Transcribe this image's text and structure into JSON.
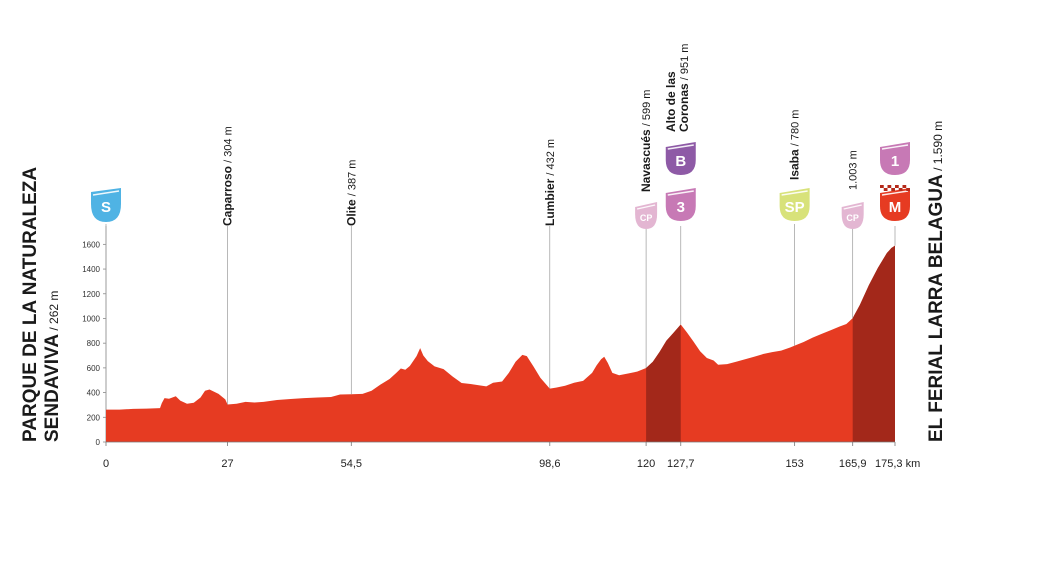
{
  "chart_data": {
    "type": "area",
    "title": "",
    "xlabel": "",
    "ylabel": "",
    "xlim": [
      0,
      175.3
    ],
    "ylim": [
      0,
      1700
    ],
    "y_ticks": [
      0,
      200,
      400,
      600,
      800,
      1000,
      1200,
      1400,
      1600
    ],
    "x_ticks": [
      {
        "km": 0,
        "label": "0"
      },
      {
        "km": 27,
        "label": "27"
      },
      {
        "km": 54.5,
        "label": "54,5"
      },
      {
        "km": 98.6,
        "label": "98,6"
      },
      {
        "km": 120,
        "label": "120"
      },
      {
        "km": 127.7,
        "label": "127,7"
      },
      {
        "km": 153,
        "label": "153"
      },
      {
        "km": 165.9,
        "label": "165,9"
      },
      {
        "km": 175.3,
        "label": "175,3 km"
      }
    ],
    "profile": [
      [
        0,
        262
      ],
      [
        3,
        262
      ],
      [
        6,
        268
      ],
      [
        9,
        270
      ],
      [
        12,
        274
      ],
      [
        12.4,
        315
      ],
      [
        13,
        355
      ],
      [
        14,
        350
      ],
      [
        15.5,
        370
      ],
      [
        16.5,
        335
      ],
      [
        18,
        310
      ],
      [
        19.5,
        318
      ],
      [
        21,
        360
      ],
      [
        22,
        415
      ],
      [
        23,
        425
      ],
      [
        25,
        390
      ],
      [
        26.5,
        345
      ],
      [
        27,
        304
      ],
      [
        29,
        310
      ],
      [
        31,
        325
      ],
      [
        33,
        320
      ],
      [
        35,
        325
      ],
      [
        38,
        340
      ],
      [
        41,
        348
      ],
      [
        44,
        355
      ],
      [
        47,
        360
      ],
      [
        50,
        364
      ],
      [
        52,
        385
      ],
      [
        54.5,
        387
      ],
      [
        57,
        390
      ],
      [
        59,
        415
      ],
      [
        61,
        465
      ],
      [
        63,
        510
      ],
      [
        64.5,
        560
      ],
      [
        65.5,
        595
      ],
      [
        66.5,
        585
      ],
      [
        67.5,
        615
      ],
      [
        69,
        695
      ],
      [
        69.8,
        760
      ],
      [
        70.5,
        700
      ],
      [
        71.5,
        655
      ],
      [
        73,
        612
      ],
      [
        75,
        590
      ],
      [
        77,
        530
      ],
      [
        79,
        478
      ],
      [
        81,
        470
      ],
      [
        83,
        458
      ],
      [
        84.5,
        450
      ],
      [
        86,
        480
      ],
      [
        88,
        490
      ],
      [
        89.5,
        560
      ],
      [
        91,
        650
      ],
      [
        92.5,
        705
      ],
      [
        93.5,
        695
      ],
      [
        95,
        610
      ],
      [
        96.5,
        520
      ],
      [
        98.6,
        432
      ],
      [
        100,
        440
      ],
      [
        102,
        455
      ],
      [
        104,
        480
      ],
      [
        106,
        495
      ],
      [
        108,
        560
      ],
      [
        109,
        620
      ],
      [
        110,
        670
      ],
      [
        110.7,
        690
      ],
      [
        111.5,
        640
      ],
      [
        112.5,
        560
      ],
      [
        114,
        540
      ],
      [
        116,
        555
      ],
      [
        118,
        570
      ],
      [
        120,
        599
      ],
      [
        121.5,
        650
      ],
      [
        123,
        730
      ],
      [
        124.5,
        820
      ],
      [
        126,
        880
      ],
      [
        127.7,
        951
      ],
      [
        129,
        890
      ],
      [
        130.5,
        815
      ],
      [
        132,
        735
      ],
      [
        133.5,
        680
      ],
      [
        135,
        660
      ],
      [
        136,
        625
      ],
      [
        138,
        630
      ],
      [
        140,
        650
      ],
      [
        142,
        670
      ],
      [
        144,
        690
      ],
      [
        146,
        712
      ],
      [
        148,
        728
      ],
      [
        150,
        740
      ],
      [
        152,
        765
      ],
      [
        153,
        780
      ],
      [
        155,
        810
      ],
      [
        157,
        845
      ],
      [
        159,
        875
      ],
      [
        161,
        905
      ],
      [
        163,
        935
      ],
      [
        164.5,
        955
      ],
      [
        165.9,
        1003
      ],
      [
        167.5,
        1110
      ],
      [
        169.5,
        1270
      ],
      [
        171.5,
        1410
      ],
      [
        173.5,
        1530
      ],
      [
        174.5,
        1570
      ],
      [
        175.3,
        1590
      ]
    ],
    "climb_segments": [
      [
        120,
        127.7
      ],
      [
        165.9,
        175.3
      ]
    ],
    "start": {
      "km": 0,
      "name_line1": "PARQUE DE LA NATURALEZA",
      "name_line2": "SENDAVIVA",
      "altitude": " / 262 m"
    },
    "finish": {
      "km": 175.3,
      "name": "EL FERIAL LARRA BELAGUA",
      "altitude": " / 1.590 m"
    },
    "waypoints": [
      {
        "km": 27,
        "elev": 304,
        "name": "Caparroso",
        "altitude": " / 304 m"
      },
      {
        "km": 54.5,
        "elev": 387,
        "name": "Olite",
        "altitude": " / 387 m"
      },
      {
        "km": 98.6,
        "elev": 432,
        "name": "Lumbier",
        "altitude": " / 432 m"
      },
      {
        "km": 120,
        "elev": 599,
        "name": "Navascués",
        "altitude": " / 599 m"
      },
      {
        "km": 127.7,
        "elev": 951,
        "name_line1": "Alto de las",
        "name_line2": "Coronas",
        "altitude": " / 951 m"
      },
      {
        "km": 153,
        "elev": 780,
        "name": "Isaba",
        "altitude": " / 780 m"
      },
      {
        "km": 165.9,
        "elev": 1003,
        "name": "",
        "altitude": "1.003 m"
      }
    ],
    "badges": [
      {
        "km": 0,
        "label": "S",
        "kind": "start",
        "color": "#4fb3e4"
      },
      {
        "km": 120,
        "label": "CP",
        "kind": "cp",
        "color": "#e3b6d2"
      },
      {
        "km": 127.7,
        "label": "3",
        "kind": "climb",
        "color": "#c779b5"
      },
      {
        "km": 127.7,
        "label": "B",
        "kind": "bonus",
        "color": "#8e5aa6"
      },
      {
        "km": 153,
        "label": "SP",
        "kind": "sprint",
        "color": "#d8e27a"
      },
      {
        "km": 165.9,
        "label": "CP",
        "kind": "cp",
        "color": "#e3b6d2"
      },
      {
        "km": 175.3,
        "label": "M",
        "kind": "finish",
        "color": "#e63b22"
      },
      {
        "km": 175.3,
        "label": "1",
        "kind": "climb",
        "color": "#c779b5"
      }
    ],
    "colors": {
      "fill": "#e63b22",
      "climb_fill": "#a3281a",
      "grid": "#cccccc"
    }
  }
}
